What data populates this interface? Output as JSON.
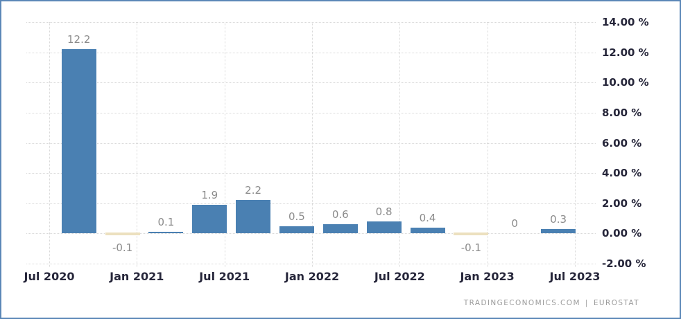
{
  "chart_data": {
    "type": "bar",
    "values": [
      12.2,
      -0.1,
      0.1,
      1.9,
      2.2,
      0.5,
      0.6,
      0.8,
      0.4,
      -0.1,
      0,
      0.3
    ],
    "value_labels": [
      "12.2",
      "-0.1",
      "0.1",
      "1.9",
      "2.2",
      "0.5",
      "0.6",
      "0.8",
      "0.4",
      "-0.1",
      "0",
      "0.3"
    ],
    "x_tick_labels": [
      "Jul 2020",
      "Jan 2021",
      "Jul 2021",
      "Jan 2022",
      "Jul 2022",
      "Jan 2023",
      "Jul 2023"
    ],
    "y_tick_labels": [
      "14.00 %",
      "12.00 %",
      "10.00 %",
      "8.00 %",
      "6.00 %",
      "4.00 %",
      "2.00 %",
      "0.00 %",
      "-2.00 %"
    ],
    "y_ticks": [
      14,
      12,
      10,
      8,
      6,
      4,
      2,
      0,
      -2
    ],
    "ylim": [
      -2,
      14
    ],
    "grid": true,
    "legend": "none",
    "colors": {
      "positive_bar": "#4a80b2",
      "negative_bar": "#ece0bf",
      "gridline": "#d9d9d9",
      "value_label": "#8b8b8b",
      "axis_label": "#26263a",
      "frame_border": "#5b87b7"
    }
  },
  "attribution": {
    "left": "TRADINGECONOMICS.COM",
    "separator": "|",
    "right": "EUROSTAT"
  }
}
